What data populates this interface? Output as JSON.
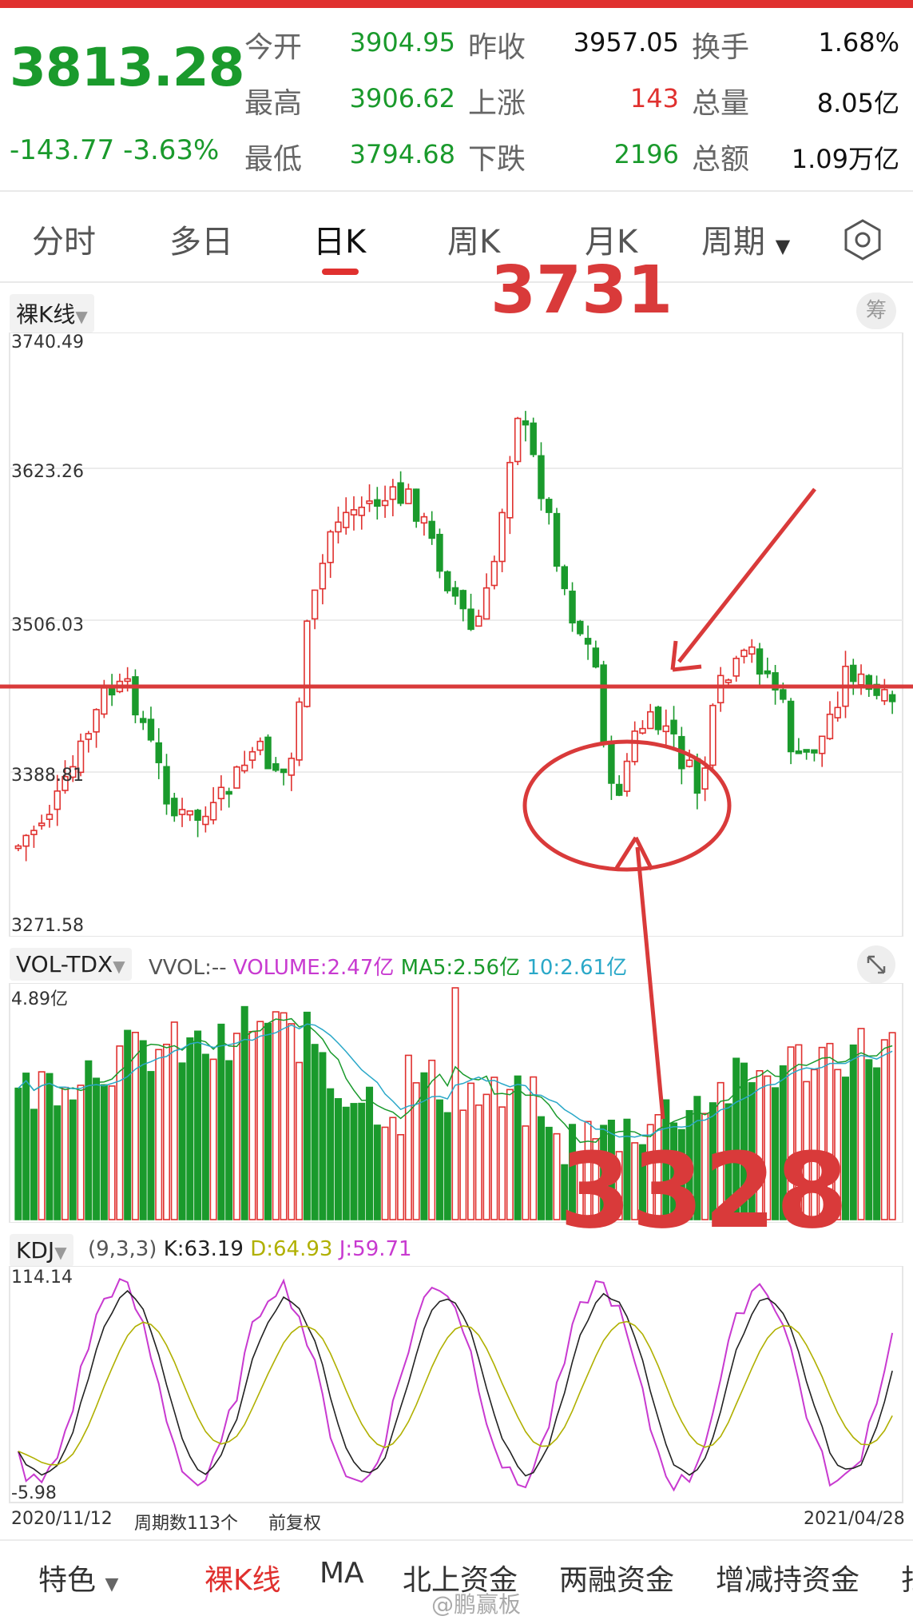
{
  "quote": {
    "price": "3813.28",
    "change": "-143.77",
    "change_pct": "-3.63%",
    "rows": [
      {
        "label1": "今开",
        "val1": "3904.95",
        "c1": "green",
        "label2": "昨收",
        "val2": "3957.05",
        "c2": "black",
        "label3": "换手",
        "val3": "1.68%",
        "c3": "black"
      },
      {
        "label1": "最高",
        "val1": "3906.62",
        "c1": "green",
        "label2": "上涨",
        "val2": "143",
        "c2": "red",
        "label3": "总量",
        "val3": "8.05亿",
        "c3": "black"
      },
      {
        "label1": "最低",
        "val1": "3794.68",
        "c1": "green",
        "label2": "下跌",
        "val2": "2196",
        "c2": "green",
        "label3": "总额",
        "val3": "1.09万亿",
        "c3": "black"
      }
    ]
  },
  "tabs": [
    "分时",
    "多日",
    "日K",
    "周K",
    "月K",
    "周期"
  ],
  "active_tab": "日K",
  "settings_icon": "hexagon-settings-icon",
  "kline": {
    "mode_label": "裸K线",
    "chip_right": "筹",
    "y_ticks": [
      "3740.49",
      "3623.26",
      "3506.03",
      "3388.81",
      "3271.58"
    ]
  },
  "annotations": {
    "top_label": "3731",
    "bottom_label": "3328"
  },
  "volume": {
    "name": "VOL-TDX",
    "vvol": "VVOL:--",
    "volume": "VOLUME:2.47亿",
    "ma5": "MA5:2.56亿",
    "ma10": "10:2.61亿",
    "max_label": "4.89亿"
  },
  "kdj": {
    "name": "KDJ",
    "params": "(9,3,3)",
    "k": "K:63.19",
    "d": "D:64.93",
    "j": "J:59.71",
    "top": "114.14",
    "bottom": "-5.98"
  },
  "footer_axis": {
    "start_date": "2020/11/12",
    "period_count": "周期数113个",
    "adjust": "前复权",
    "end_date": "2021/04/28"
  },
  "bottom_nav": [
    "特色",
    "裸K线",
    "MA",
    "北上资金",
    "两融资金",
    "增减持资金",
    "扫"
  ],
  "watermark": "@鹏赢板",
  "colors": {
    "up": "#e0312f",
    "down": "#1a9a2c",
    "accent": "#e0312f"
  }
}
